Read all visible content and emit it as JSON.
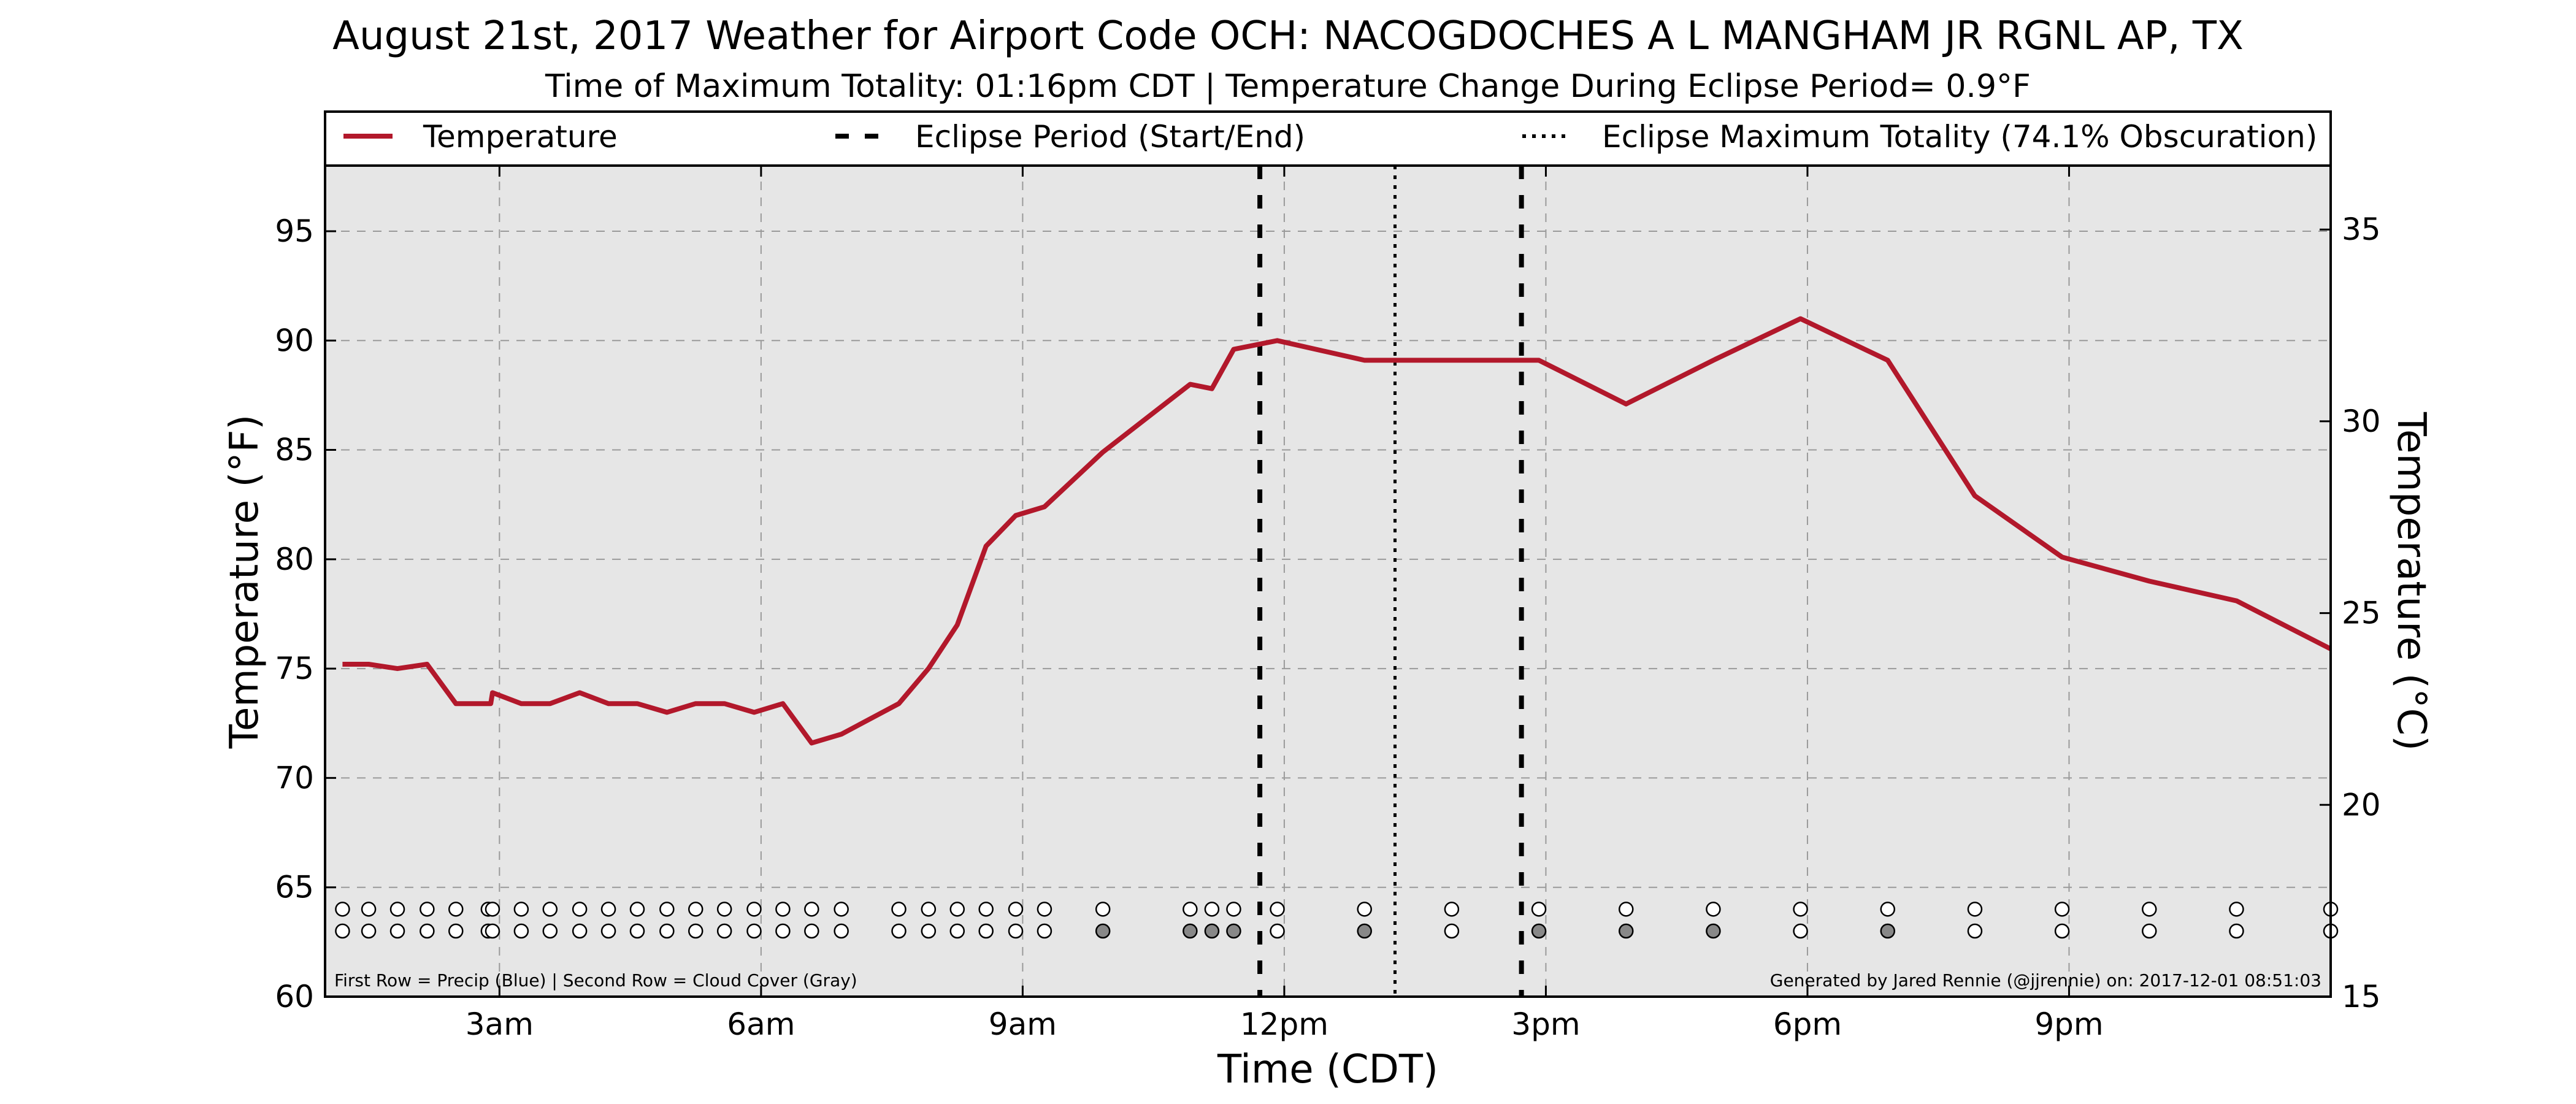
{
  "chart_data": {
    "type": "line",
    "title": "August 21st, 2017 Weather for Airport Code OCH: NACOGDOCHES A L MANGHAM JR RGNL AP, TX",
    "subtitle": "Time of Maximum Totality: 01:16pm CDT | Temperature Change During Eclipse Period= 0.9°F",
    "xlabel": "Time (CDT)",
    "ylabel": "Temperature (°F)",
    "ylabel_right": "Temperature (°C)",
    "x_unit": "hours since midnight CDT",
    "xlim": [
      1.0,
      24.0
    ],
    "ylim": [
      60,
      98
    ],
    "ylim_right": [
      15,
      36.6667
    ],
    "grid": true,
    "legend_position": "top",
    "x_ticks": [
      {
        "value": 3,
        "label": "3am"
      },
      {
        "value": 6,
        "label": "6am"
      },
      {
        "value": 9,
        "label": "9am"
      },
      {
        "value": 12,
        "label": "12pm"
      },
      {
        "value": 15,
        "label": "3pm"
      },
      {
        "value": 18,
        "label": "6pm"
      },
      {
        "value": 21,
        "label": "9pm"
      }
    ],
    "y_ticks": [
      {
        "value": 60,
        "label": "60"
      },
      {
        "value": 65,
        "label": "65"
      },
      {
        "value": 70,
        "label": "70"
      },
      {
        "value": 75,
        "label": "75"
      },
      {
        "value": 80,
        "label": "80"
      },
      {
        "value": 85,
        "label": "85"
      },
      {
        "value": 90,
        "label": "90"
      },
      {
        "value": 95,
        "label": "95"
      }
    ],
    "y_ticks_right": [
      {
        "value": 15,
        "label": "15"
      },
      {
        "value": 20,
        "label": "20"
      },
      {
        "value": 25,
        "label": "25"
      },
      {
        "value": 30,
        "label": "30"
      },
      {
        "value": 35,
        "label": "35"
      }
    ],
    "legend": [
      {
        "label": "Temperature",
        "style": "solid"
      },
      {
        "label": "Eclipse Period (Start/End)",
        "style": "dashed"
      },
      {
        "label": "Eclipse Maximum Totality (74.1% Obscuration)",
        "style": "dotted"
      }
    ],
    "series": [
      {
        "name": "Temperature",
        "color": "#b2182b",
        "x": [
          1.2,
          1.5,
          1.83,
          2.17,
          2.5,
          2.9,
          2.92,
          3.25,
          3.58,
          3.92,
          4.25,
          4.58,
          4.92,
          5.25,
          5.58,
          5.92,
          6.25,
          6.58,
          6.92,
          7.58,
          7.92,
          8.25,
          8.58,
          8.92,
          9.25,
          9.92,
          10.92,
          11.17,
          11.42,
          11.92,
          12.92,
          13.92,
          14.92,
          15.92,
          16.92,
          17.92,
          18.92,
          19.92,
          20.92,
          21.92,
          22.92,
          24.0
        ],
        "y": [
          75.2,
          75.2,
          75.0,
          75.2,
          73.4,
          73.4,
          73.9,
          73.4,
          73.4,
          73.9,
          73.4,
          73.4,
          73.0,
          73.4,
          73.4,
          73.0,
          73.4,
          71.6,
          72.0,
          73.4,
          75.0,
          77.0,
          80.6,
          82.0,
          82.4,
          84.9,
          88.0,
          87.8,
          89.6,
          90.0,
          89.1,
          89.1,
          89.1,
          87.1,
          89.1,
          91.0,
          89.1,
          82.9,
          80.1,
          79.0,
          78.1,
          75.9
        ]
      }
    ],
    "eclipse_start": 11.72,
    "eclipse_max": 13.27,
    "eclipse_end": 14.72,
    "obs_rows": {
      "precip_y": 64,
      "cloud_y": 63,
      "x": [
        1.2,
        1.5,
        1.83,
        2.17,
        2.5,
        2.87,
        2.92,
        3.25,
        3.58,
        3.92,
        4.25,
        4.58,
        4.92,
        5.25,
        5.58,
        5.92,
        6.25,
        6.58,
        6.92,
        7.58,
        7.92,
        8.25,
        8.58,
        8.92,
        9.25,
        9.92,
        10.92,
        11.17,
        11.42,
        11.92,
        12.92,
        13.92,
        14.92,
        15.92,
        16.92,
        17.92,
        18.92,
        19.92,
        20.92,
        21.92,
        22.92,
        24.0
      ],
      "cloud_shaded": [
        false,
        false,
        false,
        false,
        false,
        false,
        false,
        false,
        false,
        false,
        false,
        false,
        false,
        false,
        false,
        false,
        false,
        false,
        false,
        false,
        false,
        false,
        false,
        false,
        false,
        true,
        true,
        true,
        true,
        false,
        true,
        false,
        true,
        true,
        true,
        false,
        true,
        false,
        false,
        false,
        false,
        false
      ],
      "precip_color": "#ffffff",
      "cloud_clear_color": "#ffffff",
      "cloud_gray_color": "#888888"
    },
    "note_left": "First Row = Precip (Blue) | Second Row = Cloud Cover (Gray)",
    "note_right": "Generated by Jared Rennie (@jjrennie) on: 2017-12-01 08:51:03",
    "colors": {
      "plot_background": "#e6e6e6",
      "temperature_line": "#b2182b",
      "eclipse_lines": "#000000",
      "grid": "#9a9a9a"
    }
  }
}
